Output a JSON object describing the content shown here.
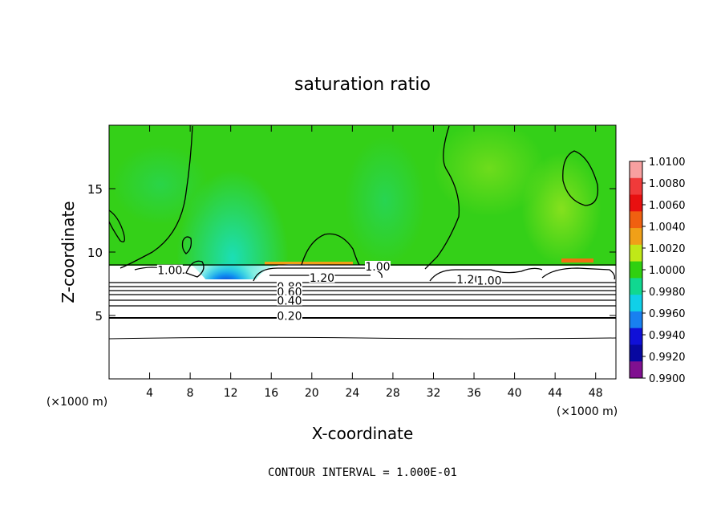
{
  "chart_data": {
    "type": "heatmap",
    "title": "saturation ratio",
    "xlabel": "X-coordinate",
    "ylabel": "Z-coordinate",
    "x_unit_left": "(×1000 m)",
    "x_unit_right": "(×1000 m)",
    "xlim": [
      0,
      50
    ],
    "ylim": [
      0,
      20
    ],
    "x_ticks": [
      4,
      8,
      12,
      16,
      20,
      24,
      28,
      32,
      36,
      40,
      44,
      48
    ],
    "y_ticks": [
      5,
      10,
      15
    ],
    "footer": "CONTOUR INTERVAL = 1.000E-01",
    "contour_labels": [
      {
        "text": "1.00",
        "x": 26.5,
        "y": 8.8
      },
      {
        "text": "1.20",
        "x": 21.0,
        "y": 7.9
      },
      {
        "text": "1.20",
        "x": 35.5,
        "y": 7.8
      },
      {
        "text": "1.00",
        "x": 37.5,
        "y": 7.7
      },
      {
        "text": "1.00",
        "x": 6.0,
        "y": 8.5
      },
      {
        "text": "0.80",
        "x": 17.8,
        "y": 7.2
      },
      {
        "text": "0.60",
        "x": 17.8,
        "y": 6.8
      },
      {
        "text": "0.40",
        "x": 17.8,
        "y": 6.1
      },
      {
        "text": "0.20",
        "x": 17.8,
        "y": 4.9
      }
    ],
    "colorbar": {
      "labels": [
        "1.0100",
        "1.0080",
        "1.0060",
        "1.0040",
        "1.0020",
        "1.0000",
        "0.9980",
        "0.9960",
        "0.9940",
        "0.9920",
        "0.9900"
      ],
      "colors": [
        "#f8a0a0",
        "#f03a3a",
        "#e81010",
        "#f06010",
        "#f0a018",
        "#c0e818",
        "#30d010",
        "#10d890",
        "#10d0e8",
        "#1880f0",
        "#1010d8",
        "#0808a0",
        "#801090"
      ]
    }
  }
}
